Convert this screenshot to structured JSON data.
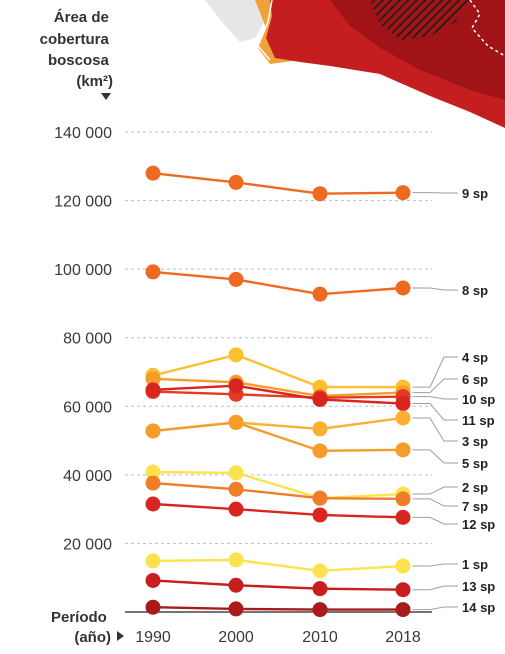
{
  "chart_data": {
    "type": "line",
    "ytitle": [
      "Área de",
      "cobertura",
      "boscosa",
      "(km²)"
    ],
    "xtitle": [
      "Período",
      "(año)"
    ],
    "x": [
      "1990",
      "2000",
      "2010",
      "2018"
    ],
    "yticks": [
      "20 000",
      "40 000",
      "60 000",
      "80 000",
      "100 000",
      "120 000",
      "140 000"
    ],
    "ylim": [
      0,
      146000
    ],
    "grid": true,
    "series": [
      {
        "name": "9 sp",
        "values": [
          128000,
          125300,
          122000,
          122300
        ],
        "color": "#ee6a22"
      },
      {
        "name": "8 sp",
        "values": [
          99200,
          97000,
          92700,
          94500
        ],
        "color": "#ee6a22"
      },
      {
        "name": "4 sp",
        "values": [
          69000,
          75000,
          65600,
          65600
        ],
        "color": "#fbc02d"
      },
      {
        "name": "6 sp",
        "values": [
          68000,
          67000,
          63000,
          64000
        ],
        "color": "#f59c2a"
      },
      {
        "name": "10 sp",
        "values": [
          64300,
          63500,
          62500,
          62800
        ],
        "color": "#e33a26"
      },
      {
        "name": "11 sp",
        "values": [
          64800,
          66000,
          62000,
          60800
        ],
        "color": "#d9251f"
      },
      {
        "name": "3 sp",
        "values": [
          52800,
          55300,
          53400,
          56600
        ],
        "color": "#fbb030"
      },
      {
        "name": "5 sp",
        "values": [
          52800,
          55300,
          47000,
          47300
        ],
        "color": "#f59c2a"
      },
      {
        "name": "2 sp",
        "values": [
          40800,
          40600,
          33200,
          34400
        ],
        "color": "#fde24f"
      },
      {
        "name": "7 sp",
        "values": [
          37600,
          35800,
          33200,
          33000
        ],
        "color": "#ef7d2a"
      },
      {
        "name": "12 sp",
        "values": [
          31500,
          30000,
          28300,
          27600
        ],
        "color": "#d9251f"
      },
      {
        "name": "1 sp",
        "values": [
          14900,
          15200,
          12000,
          13400
        ],
        "color": "#fde24f"
      },
      {
        "name": "13 sp",
        "values": [
          9200,
          7800,
          6800,
          6500
        ],
        "color": "#c81e1e"
      },
      {
        "name": "14 sp",
        "values": [
          1400,
          900,
          700,
          700
        ],
        "color": "#a81b1b"
      }
    ],
    "colors": {
      "grid": "#bdbdbd",
      "baseline": "#222222",
      "connector": "#9e9e9e",
      "map_red": "#c41e20",
      "map_dark_red": "#a01418",
      "map_light": "#e8e8e8"
    }
  }
}
